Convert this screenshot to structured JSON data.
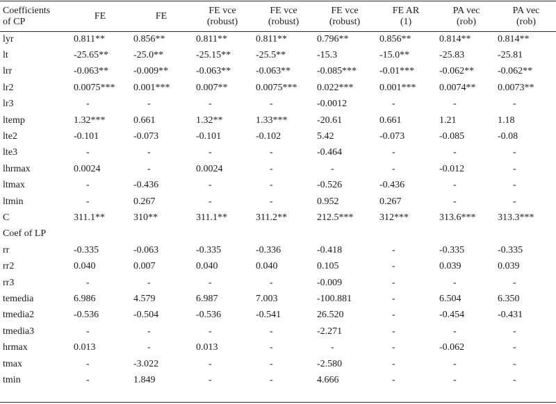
{
  "header": {
    "first": [
      "Coefficients",
      "of CP"
    ],
    "cols": [
      [
        "FE",
        ""
      ],
      [
        "FE",
        ""
      ],
      [
        "FE vce",
        "(robust)"
      ],
      [
        "FE vce",
        "(robust)"
      ],
      [
        "FE vce",
        "(robust)"
      ],
      [
        "FE AR",
        "(1)"
      ],
      [
        "PA vec",
        "(rob)"
      ],
      [
        "PA vec",
        "(rob)"
      ]
    ]
  },
  "rows": [
    {
      "label": "lyr",
      "values": [
        "0.811**",
        "0.856**",
        "0.811**",
        "0.811**",
        "0.796**",
        "0.856**",
        "0.814**",
        "0.814**"
      ]
    },
    {
      "label": "lt",
      "values": [
        "-25.65**",
        "-25.0**",
        "-25.15**",
        "-25.5**",
        "-15.3",
        "-15.0**",
        "-25.83",
        "-25.81"
      ]
    },
    {
      "label": "lrr",
      "values": [
        "-0.063**",
        "-0.009**",
        "-0.063**",
        "-0.063**",
        "-0.085***",
        "-0.01***",
        "-0.062**",
        "-0.062**"
      ]
    },
    {
      "label": "lr2",
      "values": [
        "0.0075***",
        "0.001***",
        "0.007**",
        "0.0075***",
        "0.022***",
        "0.001***",
        "0.0074**",
        "0.0073**"
      ]
    },
    {
      "label": "lr3",
      "values": [
        "-",
        "-",
        "-",
        "-",
        "-0.0012",
        "-",
        "-",
        "-"
      ]
    },
    {
      "label": "ltemp",
      "values": [
        "1.32***",
        "0.661",
        "1.32**",
        "1.33***",
        "-20.61",
        "0.661",
        "1.21",
        "1.18"
      ]
    },
    {
      "label": "lte2",
      "values": [
        "-0.101",
        "-0.073",
        "-0.101",
        "-0.102",
        "5.42",
        "-0.073",
        "-0.085",
        "-0.08"
      ]
    },
    {
      "label": "lte3",
      "values": [
        "-",
        "-",
        "-",
        "-",
        "-0.464",
        "-",
        "-",
        "-"
      ]
    },
    {
      "label": "lhrmax",
      "values": [
        "0.0024",
        "-",
        "0.0024",
        "-",
        "-",
        "-",
        "-0.012",
        "-"
      ]
    },
    {
      "label": "ltmax",
      "values": [
        "-",
        "-0.436",
        "-",
        "-",
        "-0.526",
        "-0.436",
        "-",
        "-"
      ]
    },
    {
      "label": "ltmin",
      "values": [
        "-",
        "0.267",
        "-",
        "-",
        "0.952",
        "0.267",
        "-",
        "-"
      ]
    },
    {
      "label": "C",
      "values": [
        "311.1**",
        "310**",
        "311.1**",
        "311.2**",
        "212.5***",
        "312***",
        "313.6***",
        "313.3***"
      ]
    },
    {
      "label": "Coef of LP",
      "values": [
        "",
        "",
        "",
        "",
        "",
        "",
        "",
        ""
      ]
    },
    {
      "label": "rr",
      "values": [
        "-0.335",
        "-0.063",
        "-0.335",
        "-0.336",
        "-0.418",
        "-",
        "-0.335",
        "-0.335"
      ]
    },
    {
      "label": "rr2",
      "values": [
        "0.040",
        "0.007",
        "0.040",
        "0.040",
        "0.105",
        "-",
        "0.039",
        "0.039"
      ]
    },
    {
      "label": "rr3",
      "values": [
        "-",
        "-",
        "-",
        "-",
        "-0.009",
        "-",
        "-",
        "-"
      ]
    },
    {
      "label": "temedia",
      "values": [
        "6.986",
        "4.579",
        "6.987",
        "7.003",
        "-100.881",
        "-",
        "6.504",
        "6.350"
      ]
    },
    {
      "label": "tmedia2",
      "values": [
        "-0.536",
        "-0.504",
        "-0.536",
        "-0.541",
        "26.520",
        "-",
        "-0.454",
        "-0.431"
      ]
    },
    {
      "label": "tmedia3",
      "values": [
        "-",
        "-",
        "-",
        "-",
        "-2.271",
        "-",
        "-",
        "-"
      ]
    },
    {
      "label": "hrmax",
      "values": [
        "0.013",
        "-",
        "0.013",
        "-",
        "-",
        "-",
        "-0.062",
        "-"
      ]
    },
    {
      "label": "tmax",
      "values": [
        "-",
        "-3.022",
        "-",
        "-",
        "-2.580",
        "-",
        "-",
        "-"
      ]
    },
    {
      "label": "tmin",
      "values": [
        "-",
        "1.849",
        "-",
        "-",
        "4.666",
        "-",
        "-",
        "-"
      ]
    }
  ]
}
